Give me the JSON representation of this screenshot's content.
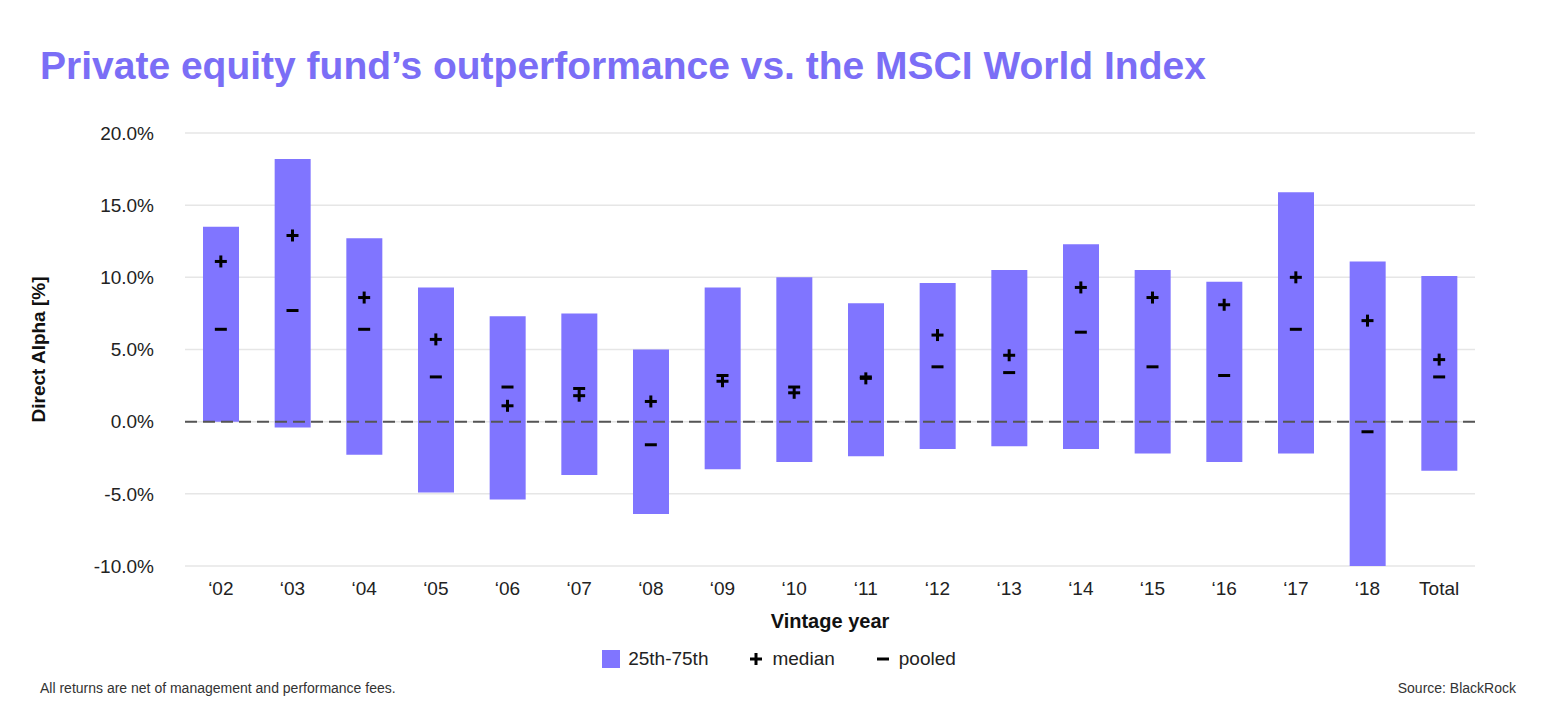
{
  "chart_data": {
    "type": "range_bar",
    "title": "Private equity fund’s outperformance vs. the MSCI World Index",
    "x_label": "Vintage year",
    "y_label": "Direct Alpha [%]",
    "note": "All returns are net of management and performance fees.",
    "source": "Source: BlackRock",
    "categories": [
      "‘02",
      "‘03",
      "‘04",
      "‘05",
      "‘06",
      "‘07",
      "‘08",
      "‘09",
      "‘10",
      "‘11",
      "‘12",
      "‘13",
      "‘14",
      "‘15",
      "‘16",
      "‘17",
      "‘18",
      "Total"
    ],
    "series": [
      {
        "name": "25th-75th",
        "type": "range",
        "color": "#8075ff",
        "low": [
          0.0,
          -0.4,
          -2.3,
          -4.9,
          -5.4,
          -3.7,
          -6.4,
          -3.3,
          -2.8,
          -2.4,
          -1.9,
          -1.7,
          -1.9,
          -2.2,
          -2.8,
          -2.2,
          -10.0,
          -3.4
        ],
        "high": [
          13.5,
          18.2,
          12.7,
          9.3,
          7.3,
          7.5,
          5.0,
          9.3,
          10.0,
          8.2,
          9.6,
          10.5,
          12.3,
          10.5,
          9.7,
          15.9,
          11.1,
          10.1
        ]
      },
      {
        "name": "median",
        "type": "scatter",
        "marker": "plus",
        "color": "#000000",
        "values": [
          11.1,
          12.9,
          8.6,
          5.7,
          1.1,
          1.8,
          1.4,
          2.8,
          2.0,
          3.0,
          6.0,
          4.6,
          9.3,
          8.6,
          8.1,
          10.0,
          7.0,
          4.3
        ]
      },
      {
        "name": "pooled",
        "type": "scatter",
        "marker": "minus",
        "color": "#000000",
        "values": [
          6.4,
          7.7,
          6.4,
          3.1,
          2.4,
          2.3,
          -1.6,
          3.2,
          2.4,
          3.1,
          3.8,
          3.4,
          6.2,
          3.8,
          3.2,
          6.4,
          -0.7,
          3.1
        ]
      }
    ],
    "ylim": [
      -10,
      20
    ],
    "yticks": [
      {
        "value": -10,
        "label": "-10.0%"
      },
      {
        "value": -5,
        "label": "-5.0%"
      },
      {
        "value": 0,
        "label": "0.0%"
      },
      {
        "value": 5,
        "label": "5.0%"
      },
      {
        "value": 10,
        "label": "10.0%"
      },
      {
        "value": 15,
        "label": "15.0%"
      },
      {
        "value": 20,
        "label": "20.0%"
      }
    ],
    "baseline": 0,
    "grid": true,
    "legend": "bottom"
  }
}
